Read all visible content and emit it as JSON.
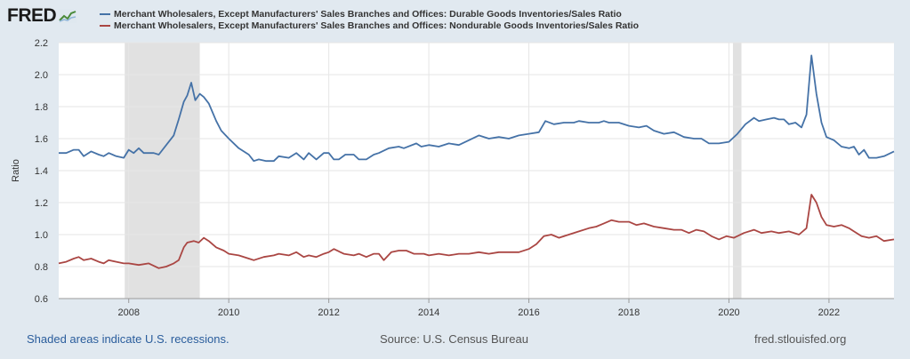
{
  "header": {
    "logo_text": "FRED",
    "logo_icon": "chart-line-icon"
  },
  "legend": [
    {
      "label": "Merchant Wholesalers, Except Manufacturers' Sales Branches and Offices: Durable Goods Inventories/Sales Ratio",
      "color": "#4572a7"
    },
    {
      "label": "Merchant Wholesalers, Except Manufacturers' Sales Branches and Offices: Nondurable Goods Inventories/Sales Ratio",
      "color": "#aa4643"
    }
  ],
  "footer": {
    "note": "Shaded areas indicate U.S. recessions.",
    "source": "Source: U.S. Census Bureau",
    "site": "fred.stlouisfed.org"
  },
  "chart_data": {
    "type": "line",
    "ylabel": "Ratio",
    "xlabel": "",
    "xlim": [
      2006.6,
      2023.3
    ],
    "ylim": [
      0.6,
      2.2
    ],
    "y_ticks": [
      "0.6",
      "0.8",
      "1.0",
      "1.2",
      "1.4",
      "1.6",
      "1.8",
      "2.0",
      "2.2"
    ],
    "x_ticks": [
      "2008",
      "2010",
      "2012",
      "2014",
      "2016",
      "2018",
      "2020",
      "2022"
    ],
    "grid": true,
    "recessions": [
      [
        2007.92,
        2009.42
      ],
      [
        2020.08,
        2020.25
      ]
    ],
    "series": [
      {
        "color": "#4572a7",
        "points": [
          [
            2006.6,
            1.51
          ],
          [
            2006.75,
            1.51
          ],
          [
            2006.9,
            1.53
          ],
          [
            2007.0,
            1.53
          ],
          [
            2007.1,
            1.49
          ],
          [
            2007.25,
            1.52
          ],
          [
            2007.4,
            1.5
          ],
          [
            2007.5,
            1.49
          ],
          [
            2007.6,
            1.51
          ],
          [
            2007.75,
            1.49
          ],
          [
            2007.9,
            1.48
          ],
          [
            2008.0,
            1.53
          ],
          [
            2008.1,
            1.51
          ],
          [
            2008.2,
            1.54
          ],
          [
            2008.3,
            1.51
          ],
          [
            2008.5,
            1.51
          ],
          [
            2008.6,
            1.5
          ],
          [
            2008.75,
            1.56
          ],
          [
            2008.9,
            1.62
          ],
          [
            2009.0,
            1.72
          ],
          [
            2009.1,
            1.83
          ],
          [
            2009.17,
            1.87
          ],
          [
            2009.25,
            1.95
          ],
          [
            2009.33,
            1.84
          ],
          [
            2009.42,
            1.88
          ],
          [
            2009.5,
            1.86
          ],
          [
            2009.6,
            1.82
          ],
          [
            2009.75,
            1.71
          ],
          [
            2009.85,
            1.65
          ],
          [
            2010.0,
            1.6
          ],
          [
            2010.2,
            1.54
          ],
          [
            2010.4,
            1.5
          ],
          [
            2010.5,
            1.46
          ],
          [
            2010.6,
            1.47
          ],
          [
            2010.75,
            1.46
          ],
          [
            2010.9,
            1.46
          ],
          [
            2011.0,
            1.49
          ],
          [
            2011.2,
            1.48
          ],
          [
            2011.35,
            1.51
          ],
          [
            2011.5,
            1.47
          ],
          [
            2011.6,
            1.51
          ],
          [
            2011.75,
            1.47
          ],
          [
            2011.9,
            1.51
          ],
          [
            2012.0,
            1.51
          ],
          [
            2012.1,
            1.47
          ],
          [
            2012.2,
            1.47
          ],
          [
            2012.33,
            1.5
          ],
          [
            2012.5,
            1.5
          ],
          [
            2012.6,
            1.47
          ],
          [
            2012.75,
            1.47
          ],
          [
            2012.9,
            1.5
          ],
          [
            2013.0,
            1.51
          ],
          [
            2013.2,
            1.54
          ],
          [
            2013.4,
            1.55
          ],
          [
            2013.5,
            1.54
          ],
          [
            2013.75,
            1.57
          ],
          [
            2013.85,
            1.55
          ],
          [
            2014.0,
            1.56
          ],
          [
            2014.2,
            1.55
          ],
          [
            2014.4,
            1.57
          ],
          [
            2014.6,
            1.56
          ],
          [
            2014.8,
            1.59
          ],
          [
            2015.0,
            1.62
          ],
          [
            2015.2,
            1.6
          ],
          [
            2015.4,
            1.61
          ],
          [
            2015.6,
            1.6
          ],
          [
            2015.8,
            1.62
          ],
          [
            2016.0,
            1.63
          ],
          [
            2016.2,
            1.64
          ],
          [
            2016.33,
            1.71
          ],
          [
            2016.5,
            1.69
          ],
          [
            2016.7,
            1.7
          ],
          [
            2016.9,
            1.7
          ],
          [
            2017.0,
            1.71
          ],
          [
            2017.2,
            1.7
          ],
          [
            2017.4,
            1.7
          ],
          [
            2017.5,
            1.71
          ],
          [
            2017.6,
            1.7
          ],
          [
            2017.8,
            1.7
          ],
          [
            2018.0,
            1.68
          ],
          [
            2018.2,
            1.67
          ],
          [
            2018.35,
            1.68
          ],
          [
            2018.5,
            1.65
          ],
          [
            2018.7,
            1.63
          ],
          [
            2018.9,
            1.64
          ],
          [
            2019.1,
            1.61
          ],
          [
            2019.3,
            1.6
          ],
          [
            2019.45,
            1.6
          ],
          [
            2019.6,
            1.57
          ],
          [
            2019.8,
            1.57
          ],
          [
            2020.0,
            1.58
          ],
          [
            2020.17,
            1.63
          ],
          [
            2020.33,
            1.69
          ],
          [
            2020.5,
            1.73
          ],
          [
            2020.6,
            1.71
          ],
          [
            2020.75,
            1.72
          ],
          [
            2020.9,
            1.73
          ],
          [
            2021.0,
            1.72
          ],
          [
            2021.1,
            1.72
          ],
          [
            2021.2,
            1.69
          ],
          [
            2021.33,
            1.7
          ],
          [
            2021.45,
            1.67
          ],
          [
            2021.55,
            1.75
          ],
          [
            2021.65,
            2.12
          ],
          [
            2021.75,
            1.88
          ],
          [
            2021.85,
            1.7
          ],
          [
            2021.95,
            1.61
          ],
          [
            2022.1,
            1.59
          ],
          [
            2022.25,
            1.55
          ],
          [
            2022.4,
            1.54
          ],
          [
            2022.5,
            1.55
          ],
          [
            2022.6,
            1.5
          ],
          [
            2022.7,
            1.53
          ],
          [
            2022.8,
            1.48
          ],
          [
            2022.95,
            1.48
          ],
          [
            2023.1,
            1.49
          ],
          [
            2023.3,
            1.52
          ]
        ]
      },
      {
        "color": "#aa4643",
        "points": [
          [
            2006.6,
            0.82
          ],
          [
            2006.75,
            0.83
          ],
          [
            2006.9,
            0.85
          ],
          [
            2007.0,
            0.86
          ],
          [
            2007.1,
            0.84
          ],
          [
            2007.25,
            0.85
          ],
          [
            2007.4,
            0.83
          ],
          [
            2007.5,
            0.82
          ],
          [
            2007.6,
            0.84
          ],
          [
            2007.75,
            0.83
          ],
          [
            2007.9,
            0.82
          ],
          [
            2008.0,
            0.82
          ],
          [
            2008.2,
            0.81
          ],
          [
            2008.4,
            0.82
          ],
          [
            2008.6,
            0.79
          ],
          [
            2008.75,
            0.8
          ],
          [
            2008.9,
            0.82
          ],
          [
            2009.0,
            0.84
          ],
          [
            2009.1,
            0.92
          ],
          [
            2009.17,
            0.95
          ],
          [
            2009.3,
            0.96
          ],
          [
            2009.4,
            0.95
          ],
          [
            2009.5,
            0.98
          ],
          [
            2009.6,
            0.96
          ],
          [
            2009.75,
            0.92
          ],
          [
            2009.9,
            0.9
          ],
          [
            2010.0,
            0.88
          ],
          [
            2010.2,
            0.87
          ],
          [
            2010.4,
            0.85
          ],
          [
            2010.5,
            0.84
          ],
          [
            2010.7,
            0.86
          ],
          [
            2010.9,
            0.87
          ],
          [
            2011.0,
            0.88
          ],
          [
            2011.2,
            0.87
          ],
          [
            2011.35,
            0.89
          ],
          [
            2011.5,
            0.86
          ],
          [
            2011.6,
            0.87
          ],
          [
            2011.75,
            0.86
          ],
          [
            2011.9,
            0.88
          ],
          [
            2012.0,
            0.89
          ],
          [
            2012.1,
            0.91
          ],
          [
            2012.3,
            0.88
          ],
          [
            2012.5,
            0.87
          ],
          [
            2012.6,
            0.88
          ],
          [
            2012.75,
            0.86
          ],
          [
            2012.9,
            0.88
          ],
          [
            2013.0,
            0.88
          ],
          [
            2013.1,
            0.84
          ],
          [
            2013.25,
            0.89
          ],
          [
            2013.4,
            0.9
          ],
          [
            2013.55,
            0.9
          ],
          [
            2013.7,
            0.88
          ],
          [
            2013.9,
            0.88
          ],
          [
            2014.0,
            0.87
          ],
          [
            2014.2,
            0.88
          ],
          [
            2014.4,
            0.87
          ],
          [
            2014.6,
            0.88
          ],
          [
            2014.8,
            0.88
          ],
          [
            2015.0,
            0.89
          ],
          [
            2015.2,
            0.88
          ],
          [
            2015.4,
            0.89
          ],
          [
            2015.6,
            0.89
          ],
          [
            2015.8,
            0.89
          ],
          [
            2016.0,
            0.91
          ],
          [
            2016.15,
            0.94
          ],
          [
            2016.3,
            0.99
          ],
          [
            2016.45,
            1.0
          ],
          [
            2016.6,
            0.98
          ],
          [
            2016.8,
            1.0
          ],
          [
            2017.0,
            1.02
          ],
          [
            2017.2,
            1.04
          ],
          [
            2017.35,
            1.05
          ],
          [
            2017.5,
            1.07
          ],
          [
            2017.65,
            1.09
          ],
          [
            2017.8,
            1.08
          ],
          [
            2018.0,
            1.08
          ],
          [
            2018.15,
            1.06
          ],
          [
            2018.3,
            1.07
          ],
          [
            2018.5,
            1.05
          ],
          [
            2018.7,
            1.04
          ],
          [
            2018.9,
            1.03
          ],
          [
            2019.05,
            1.03
          ],
          [
            2019.2,
            1.01
          ],
          [
            2019.35,
            1.03
          ],
          [
            2019.5,
            1.02
          ],
          [
            2019.65,
            0.99
          ],
          [
            2019.8,
            0.97
          ],
          [
            2019.95,
            0.99
          ],
          [
            2020.1,
            0.98
          ],
          [
            2020.3,
            1.01
          ],
          [
            2020.5,
            1.03
          ],
          [
            2020.65,
            1.01
          ],
          [
            2020.85,
            1.02
          ],
          [
            2021.0,
            1.01
          ],
          [
            2021.2,
            1.02
          ],
          [
            2021.4,
            1.0
          ],
          [
            2021.55,
            1.04
          ],
          [
            2021.65,
            1.25
          ],
          [
            2021.75,
            1.2
          ],
          [
            2021.85,
            1.11
          ],
          [
            2021.95,
            1.06
          ],
          [
            2022.1,
            1.05
          ],
          [
            2022.25,
            1.06
          ],
          [
            2022.4,
            1.04
          ],
          [
            2022.5,
            1.02
          ],
          [
            2022.65,
            0.99
          ],
          [
            2022.8,
            0.98
          ],
          [
            2022.95,
            0.99
          ],
          [
            2023.1,
            0.96
          ],
          [
            2023.3,
            0.97
          ]
        ]
      }
    ]
  }
}
